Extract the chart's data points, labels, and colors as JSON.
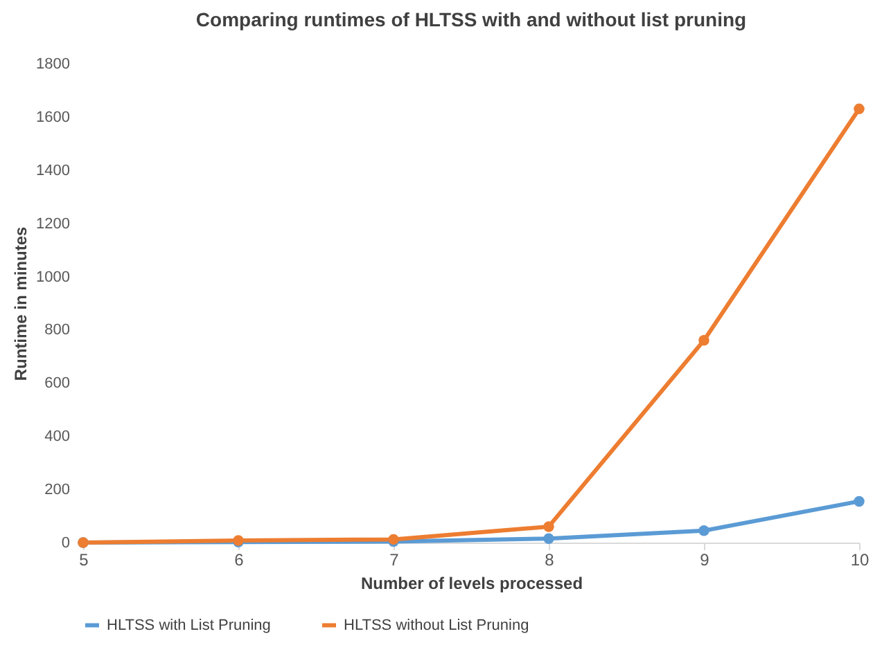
{
  "chart_data": {
    "type": "line",
    "title": "Comparing runtimes of HLTSS with and without list pruning",
    "xlabel": "Number of levels processed",
    "ylabel": "Runtime in minutes",
    "x": [
      5,
      6,
      7,
      8,
      9,
      10
    ],
    "series": [
      {
        "name": "HLTSS with List Pruning",
        "color": "#5b9bd5",
        "values": [
          0,
          2,
          4,
          15,
          45,
          155
        ]
      },
      {
        "name": "HLTSS without List Pruning",
        "color": "#ed7d31",
        "values": [
          0,
          8,
          12,
          60,
          760,
          1630
        ]
      }
    ],
    "xlim": [
      5,
      10
    ],
    "xticks": [
      5,
      6,
      7,
      8,
      9,
      10
    ],
    "ylim": [
      0,
      1800
    ],
    "yticks": [
      0,
      200,
      400,
      600,
      800,
      1000,
      1200,
      1400,
      1600,
      1800
    ],
    "grid": false,
    "legend": "bottom",
    "marker": "circle",
    "line_style": "solid"
  }
}
